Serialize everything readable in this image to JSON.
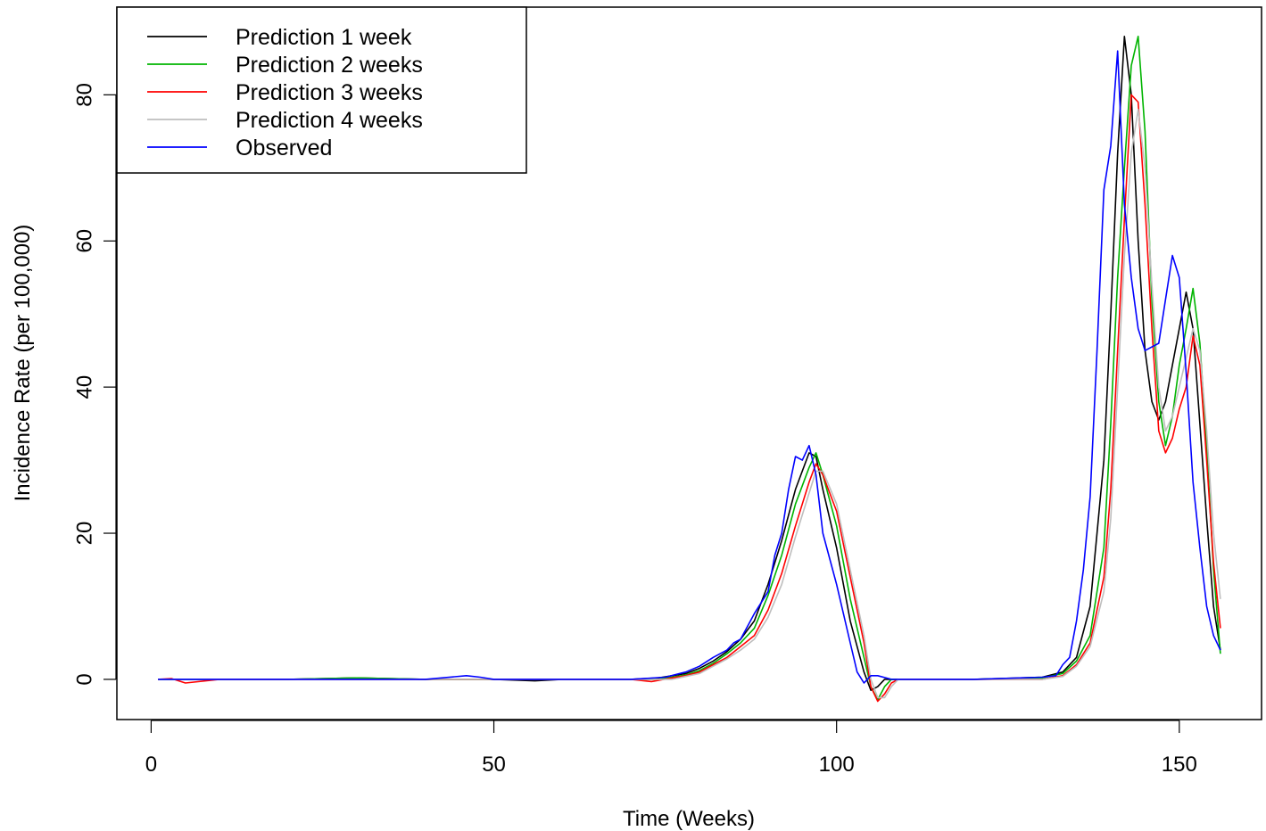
{
  "chart_data": {
    "type": "line",
    "xlabel": "Time (Weeks)",
    "ylabel": "Incidence Rate (per 100,000)",
    "xlim": [
      -5,
      162
    ],
    "ylim": [
      -5.5,
      92
    ],
    "x_ticks": [
      0,
      50,
      100,
      150
    ],
    "y_ticks": [
      0,
      20,
      40,
      60,
      80
    ],
    "grid": false,
    "legend_position": "top-left",
    "series": [
      {
        "name": "Prediction 1 week",
        "color": "#000000",
        "points": [
          [
            1,
            0
          ],
          [
            10,
            0
          ],
          [
            20,
            0
          ],
          [
            30,
            0.2
          ],
          [
            40,
            0
          ],
          [
            50,
            0
          ],
          [
            56,
            -0.2
          ],
          [
            60,
            0
          ],
          [
            70,
            0
          ],
          [
            74,
            0.2
          ],
          [
            78,
            0.8
          ],
          [
            80,
            1.5
          ],
          [
            82,
            2.5
          ],
          [
            84,
            3.8
          ],
          [
            86,
            5.5
          ],
          [
            88,
            8
          ],
          [
            90,
            13
          ],
          [
            92,
            19
          ],
          [
            94,
            26
          ],
          [
            96,
            31
          ],
          [
            97,
            30.5
          ],
          [
            98,
            26
          ],
          [
            100,
            18
          ],
          [
            102,
            8
          ],
          [
            104,
            1
          ],
          [
            105,
            -1.5
          ],
          [
            106,
            -1
          ],
          [
            107,
            0
          ],
          [
            110,
            0
          ],
          [
            120,
            0
          ],
          [
            130,
            0.3
          ],
          [
            133,
            1
          ],
          [
            135,
            3
          ],
          [
            137,
            10
          ],
          [
            139,
            30
          ],
          [
            140,
            50
          ],
          [
            141,
            72
          ],
          [
            142,
            88
          ],
          [
            143,
            80
          ],
          [
            144,
            60
          ],
          [
            145,
            45
          ],
          [
            146,
            38
          ],
          [
            147,
            35.5
          ],
          [
            148,
            38
          ],
          [
            149,
            43
          ],
          [
            150,
            48
          ],
          [
            151,
            53
          ],
          [
            152,
            48
          ],
          [
            153,
            35
          ],
          [
            154,
            22
          ],
          [
            155,
            10
          ],
          [
            156,
            4
          ]
        ]
      },
      {
        "name": "Prediction 2 weeks",
        "color": "#00b400",
        "points": [
          [
            1,
            0
          ],
          [
            10,
            0
          ],
          [
            20,
            0
          ],
          [
            30,
            0.2
          ],
          [
            40,
            0
          ],
          [
            50,
            0
          ],
          [
            56,
            0
          ],
          [
            60,
            0
          ],
          [
            70,
            0
          ],
          [
            74,
            0
          ],
          [
            78,
            0.6
          ],
          [
            80,
            1.2
          ],
          [
            82,
            2.2
          ],
          [
            84,
            3.5
          ],
          [
            86,
            5
          ],
          [
            88,
            7
          ],
          [
            90,
            11.5
          ],
          [
            92,
            17
          ],
          [
            94,
            24
          ],
          [
            96,
            29
          ],
          [
            97,
            31
          ],
          [
            98,
            28
          ],
          [
            100,
            21
          ],
          [
            102,
            11
          ],
          [
            104,
            3
          ],
          [
            105,
            -1
          ],
          [
            106,
            -2.8
          ],
          [
            107,
            -1
          ],
          [
            108,
            0
          ],
          [
            110,
            0
          ],
          [
            120,
            0
          ],
          [
            130,
            0.2
          ],
          [
            133,
            0.8
          ],
          [
            135,
            2.5
          ],
          [
            137,
            6
          ],
          [
            139,
            18
          ],
          [
            140,
            35
          ],
          [
            141,
            55
          ],
          [
            142,
            70
          ],
          [
            143,
            84
          ],
          [
            144,
            88
          ],
          [
            145,
            75
          ],
          [
            146,
            52
          ],
          [
            147,
            38
          ],
          [
            148,
            32
          ],
          [
            149,
            36
          ],
          [
            150,
            43
          ],
          [
            151,
            48
          ],
          [
            152,
            53.5
          ],
          [
            153,
            46
          ],
          [
            154,
            32
          ],
          [
            155,
            15
          ],
          [
            156,
            3.5
          ]
        ]
      },
      {
        "name": "Prediction 3 weeks",
        "color": "#ff0000",
        "points": [
          [
            1,
            0
          ],
          [
            3,
            0.1
          ],
          [
            5,
            -0.5
          ],
          [
            10,
            0
          ],
          [
            20,
            0
          ],
          [
            30,
            0
          ],
          [
            40,
            0
          ],
          [
            50,
            0
          ],
          [
            60,
            0
          ],
          [
            70,
            0
          ],
          [
            73,
            -0.3
          ],
          [
            76,
            0.2
          ],
          [
            78,
            0.5
          ],
          [
            80,
            1
          ],
          [
            82,
            2
          ],
          [
            84,
            3
          ],
          [
            86,
            4.5
          ],
          [
            88,
            6
          ],
          [
            90,
            9.5
          ],
          [
            92,
            14.5
          ],
          [
            94,
            21
          ],
          [
            96,
            27
          ],
          [
            97,
            29.5
          ],
          [
            98,
            28
          ],
          [
            100,
            23
          ],
          [
            102,
            14
          ],
          [
            104,
            5
          ],
          [
            105,
            -1
          ],
          [
            106,
            -3
          ],
          [
            107,
            -2
          ],
          [
            108,
            -0.5
          ],
          [
            109,
            0
          ],
          [
            110,
            0
          ],
          [
            120,
            0
          ],
          [
            130,
            0
          ],
          [
            133,
            0.5
          ],
          [
            135,
            2
          ],
          [
            137,
            5
          ],
          [
            139,
            14
          ],
          [
            140,
            26
          ],
          [
            141,
            45
          ],
          [
            142,
            63
          ],
          [
            143,
            80
          ],
          [
            144,
            79
          ],
          [
            145,
            65
          ],
          [
            146,
            48
          ],
          [
            147,
            34
          ],
          [
            148,
            31
          ],
          [
            149,
            33
          ],
          [
            150,
            37
          ],
          [
            151,
            40
          ],
          [
            152,
            47
          ],
          [
            153,
            43
          ],
          [
            154,
            30
          ],
          [
            155,
            16
          ],
          [
            156,
            7
          ]
        ]
      },
      {
        "name": "Prediction 4 weeks",
        "color": "#bebebe",
        "points": [
          [
            1,
            0
          ],
          [
            10,
            0
          ],
          [
            20,
            0
          ],
          [
            30,
            0
          ],
          [
            40,
            0
          ],
          [
            50,
            0
          ],
          [
            60,
            0
          ],
          [
            70,
            0
          ],
          [
            76,
            0
          ],
          [
            78,
            0.4
          ],
          [
            80,
            0.8
          ],
          [
            82,
            1.8
          ],
          [
            84,
            2.8
          ],
          [
            86,
            4
          ],
          [
            88,
            5.5
          ],
          [
            90,
            8.5
          ],
          [
            92,
            13
          ],
          [
            94,
            19.5
          ],
          [
            96,
            25.5
          ],
          [
            97,
            28.5
          ],
          [
            98,
            28.5
          ],
          [
            100,
            24
          ],
          [
            102,
            15
          ],
          [
            104,
            6
          ],
          [
            105,
            0
          ],
          [
            106,
            -2.5
          ],
          [
            107,
            -2.5
          ],
          [
            108,
            -1
          ],
          [
            109,
            0
          ],
          [
            110,
            0
          ],
          [
            120,
            0
          ],
          [
            130,
            0
          ],
          [
            133,
            0.4
          ],
          [
            135,
            1.8
          ],
          [
            137,
            4.5
          ],
          [
            139,
            12
          ],
          [
            140,
            22
          ],
          [
            141,
            40
          ],
          [
            142,
            58
          ],
          [
            143,
            72
          ],
          [
            144,
            78
          ],
          [
            145,
            70
          ],
          [
            146,
            54
          ],
          [
            147,
            40
          ],
          [
            148,
            34
          ],
          [
            149,
            36
          ],
          [
            150,
            40
          ],
          [
            151,
            44
          ],
          [
            152,
            48
          ],
          [
            153,
            45
          ],
          [
            154,
            34
          ],
          [
            155,
            20
          ],
          [
            156,
            11
          ]
        ]
      },
      {
        "name": "Observed",
        "color": "#0000ff",
        "points": [
          [
            1,
            0
          ],
          [
            10,
            0
          ],
          [
            20,
            0
          ],
          [
            30,
            0
          ],
          [
            40,
            0
          ],
          [
            46,
            0.5
          ],
          [
            48,
            0.3
          ],
          [
            50,
            0
          ],
          [
            60,
            0
          ],
          [
            70,
            0
          ],
          [
            75,
            0.3
          ],
          [
            78,
            1
          ],
          [
            80,
            1.8
          ],
          [
            82,
            3
          ],
          [
            83,
            3.5
          ],
          [
            84,
            4
          ],
          [
            85,
            5
          ],
          [
            86,
            5.5
          ],
          [
            88,
            9
          ],
          [
            90,
            12
          ],
          [
            91,
            17
          ],
          [
            92,
            20
          ],
          [
            93,
            26
          ],
          [
            94,
            30.5
          ],
          [
            95,
            30
          ],
          [
            96,
            32
          ],
          [
            97,
            28
          ],
          [
            98,
            20
          ],
          [
            100,
            13
          ],
          [
            102,
            5
          ],
          [
            103,
            1
          ],
          [
            104,
            -0.5
          ],
          [
            105,
            0.5
          ],
          [
            106,
            0.5
          ],
          [
            108,
            0
          ],
          [
            110,
            0
          ],
          [
            120,
            0
          ],
          [
            130,
            0.3
          ],
          [
            132,
            0.5
          ],
          [
            133,
            2
          ],
          [
            134,
            3
          ],
          [
            135,
            8
          ],
          [
            136,
            15
          ],
          [
            137,
            25
          ],
          [
            138,
            45
          ],
          [
            139,
            67
          ],
          [
            140,
            73
          ],
          [
            141,
            86
          ],
          [
            142,
            65
          ],
          [
            143,
            55
          ],
          [
            144,
            48
          ],
          [
            145,
            45
          ],
          [
            146,
            45.5
          ],
          [
            147,
            46
          ],
          [
            148,
            52
          ],
          [
            149,
            58
          ],
          [
            150,
            55
          ],
          [
            151,
            42
          ],
          [
            152,
            27
          ],
          [
            153,
            18
          ],
          [
            154,
            10
          ],
          [
            155,
            6
          ],
          [
            156,
            4
          ]
        ]
      }
    ]
  }
}
